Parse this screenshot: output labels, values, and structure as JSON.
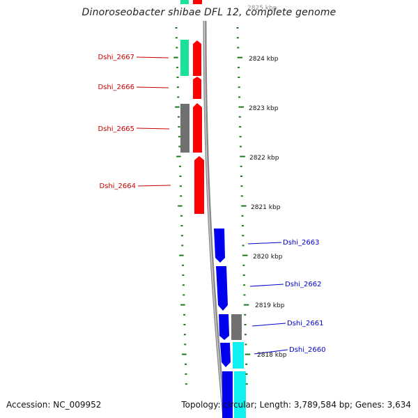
{
  "title": "Dinoroseobacter shibae DFL 12, complete genome",
  "footer": {
    "accession": "Accession: NC_009952",
    "stats": "Topology: circular; Length: 3,789,584 bp; Genes: 3,634"
  },
  "colors": {
    "background": "#ffffff",
    "backbone": "#8a8a8a",
    "tick": "#1a7a1a",
    "left_label": "#cc0000",
    "right_label": "#0000cc",
    "red_gene": "#ff0000",
    "blue_gene": "#0000ee",
    "gray_gene": "#707070",
    "teal_gene": "#19e39a",
    "cyan_gene": "#10f0f0"
  },
  "scale_labels": [
    "2824 kbp",
    "2823 kbp",
    "2822 kbp",
    "2821 kbp",
    "2820 kbp",
    "2819 kbp",
    "2818 kbp"
  ],
  "left_genes": [
    "Dshi_2667",
    "Dshi_2666",
    "Dshi_2665",
    "Dshi_2664"
  ],
  "right_genes": [
    "Dshi_2663",
    "Dshi_2662",
    "Dshi_2661",
    "Dshi_2660"
  ]
}
